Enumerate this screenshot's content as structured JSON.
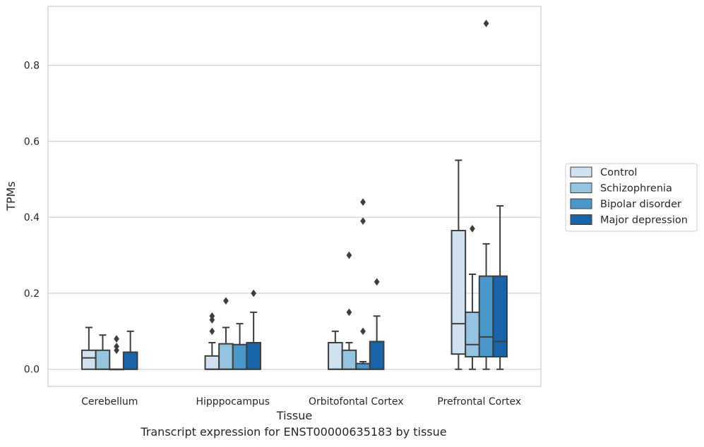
{
  "chart_data": {
    "type": "box",
    "caption": "Transcript expression for ENST00000635183 by tissue",
    "xlabel": "Tissue",
    "ylabel": "TPMs",
    "ylim": [
      -0.045,
      0.955
    ],
    "yticks": [
      0.0,
      0.2,
      0.4,
      0.6,
      0.8
    ],
    "ytick_labels": [
      "0.0",
      "0.2",
      "0.4",
      "0.6",
      "0.8"
    ],
    "grid": "horizontal",
    "legend_position": "right",
    "categories": [
      "Cerebellum",
      "Hipppocampus",
      "Orbitofontal Cortex",
      "Prefrontal Cortex"
    ],
    "series": [
      {
        "name": "Control",
        "color": "#d0e1f2",
        "boxes": [
          {
            "whislo": 0.0,
            "q1": 0.0,
            "med": 0.03,
            "q3": 0.05,
            "whishi": 0.11,
            "fliers": []
          },
          {
            "whislo": 0.0,
            "q1": 0.0,
            "med": 0.0,
            "q3": 0.035,
            "whishi": 0.07,
            "fliers": [
              0.1,
              0.13,
              0.14
            ]
          },
          {
            "whislo": 0.0,
            "q1": 0.0,
            "med": 0.0,
            "q3": 0.07,
            "whishi": 0.1,
            "fliers": []
          },
          {
            "whislo": 0.0,
            "q1": 0.04,
            "med": 0.12,
            "q3": 0.365,
            "whishi": 0.55,
            "fliers": []
          }
        ]
      },
      {
        "name": "Schizophrenia",
        "color": "#94c4df",
        "boxes": [
          {
            "whislo": 0.0,
            "q1": 0.0,
            "med": 0.0,
            "q3": 0.05,
            "whishi": 0.09,
            "fliers": []
          },
          {
            "whislo": 0.0,
            "q1": 0.0,
            "med": 0.0,
            "q3": 0.067,
            "whishi": 0.11,
            "fliers": [
              0.18
            ]
          },
          {
            "whislo": 0.0,
            "q1": 0.0,
            "med": 0.0,
            "q3": 0.05,
            "whishi": 0.07,
            "fliers": [
              0.15,
              0.3
            ]
          },
          {
            "whislo": 0.0,
            "q1": 0.033,
            "med": 0.065,
            "q3": 0.15,
            "whishi": 0.25,
            "fliers": [
              0.37
            ]
          }
        ]
      },
      {
        "name": "Bipolar disorder",
        "color": "#4a98c9",
        "boxes": [
          {
            "whislo": 0.0,
            "q1": 0.0,
            "med": 0.0,
            "q3": 0.0,
            "whishi": 0.0,
            "fliers": [
              0.05,
              0.06,
              0.08
            ]
          },
          {
            "whislo": 0.0,
            "q1": 0.0,
            "med": 0.0,
            "q3": 0.065,
            "whishi": 0.12,
            "fliers": []
          },
          {
            "whislo": 0.0,
            "q1": 0.0,
            "med": 0.0,
            "q3": 0.015,
            "whishi": 0.02,
            "fliers": [
              0.1,
              0.39,
              0.44
            ]
          },
          {
            "whislo": 0.0,
            "q1": 0.033,
            "med": 0.085,
            "q3": 0.245,
            "whishi": 0.33,
            "fliers": [
              0.91
            ]
          }
        ]
      },
      {
        "name": "Major depression",
        "color": "#1764ab",
        "boxes": [
          {
            "whislo": 0.0,
            "q1": 0.0,
            "med": 0.0,
            "q3": 0.045,
            "whishi": 0.1,
            "fliers": []
          },
          {
            "whislo": 0.0,
            "q1": 0.0,
            "med": 0.0,
            "q3": 0.07,
            "whishi": 0.15,
            "fliers": [
              0.2
            ]
          },
          {
            "whislo": 0.0,
            "q1": 0.0,
            "med": 0.0,
            "q3": 0.073,
            "whishi": 0.14,
            "fliers": [
              0.23
            ]
          },
          {
            "whislo": 0.0,
            "q1": 0.033,
            "med": 0.073,
            "q3": 0.245,
            "whishi": 0.43,
            "fliers": []
          }
        ]
      }
    ],
    "colors": {
      "grid": "#cccccc",
      "axes_frame": "#cccccc",
      "box_edge": "#3d3d3d",
      "text": "#262626"
    }
  }
}
